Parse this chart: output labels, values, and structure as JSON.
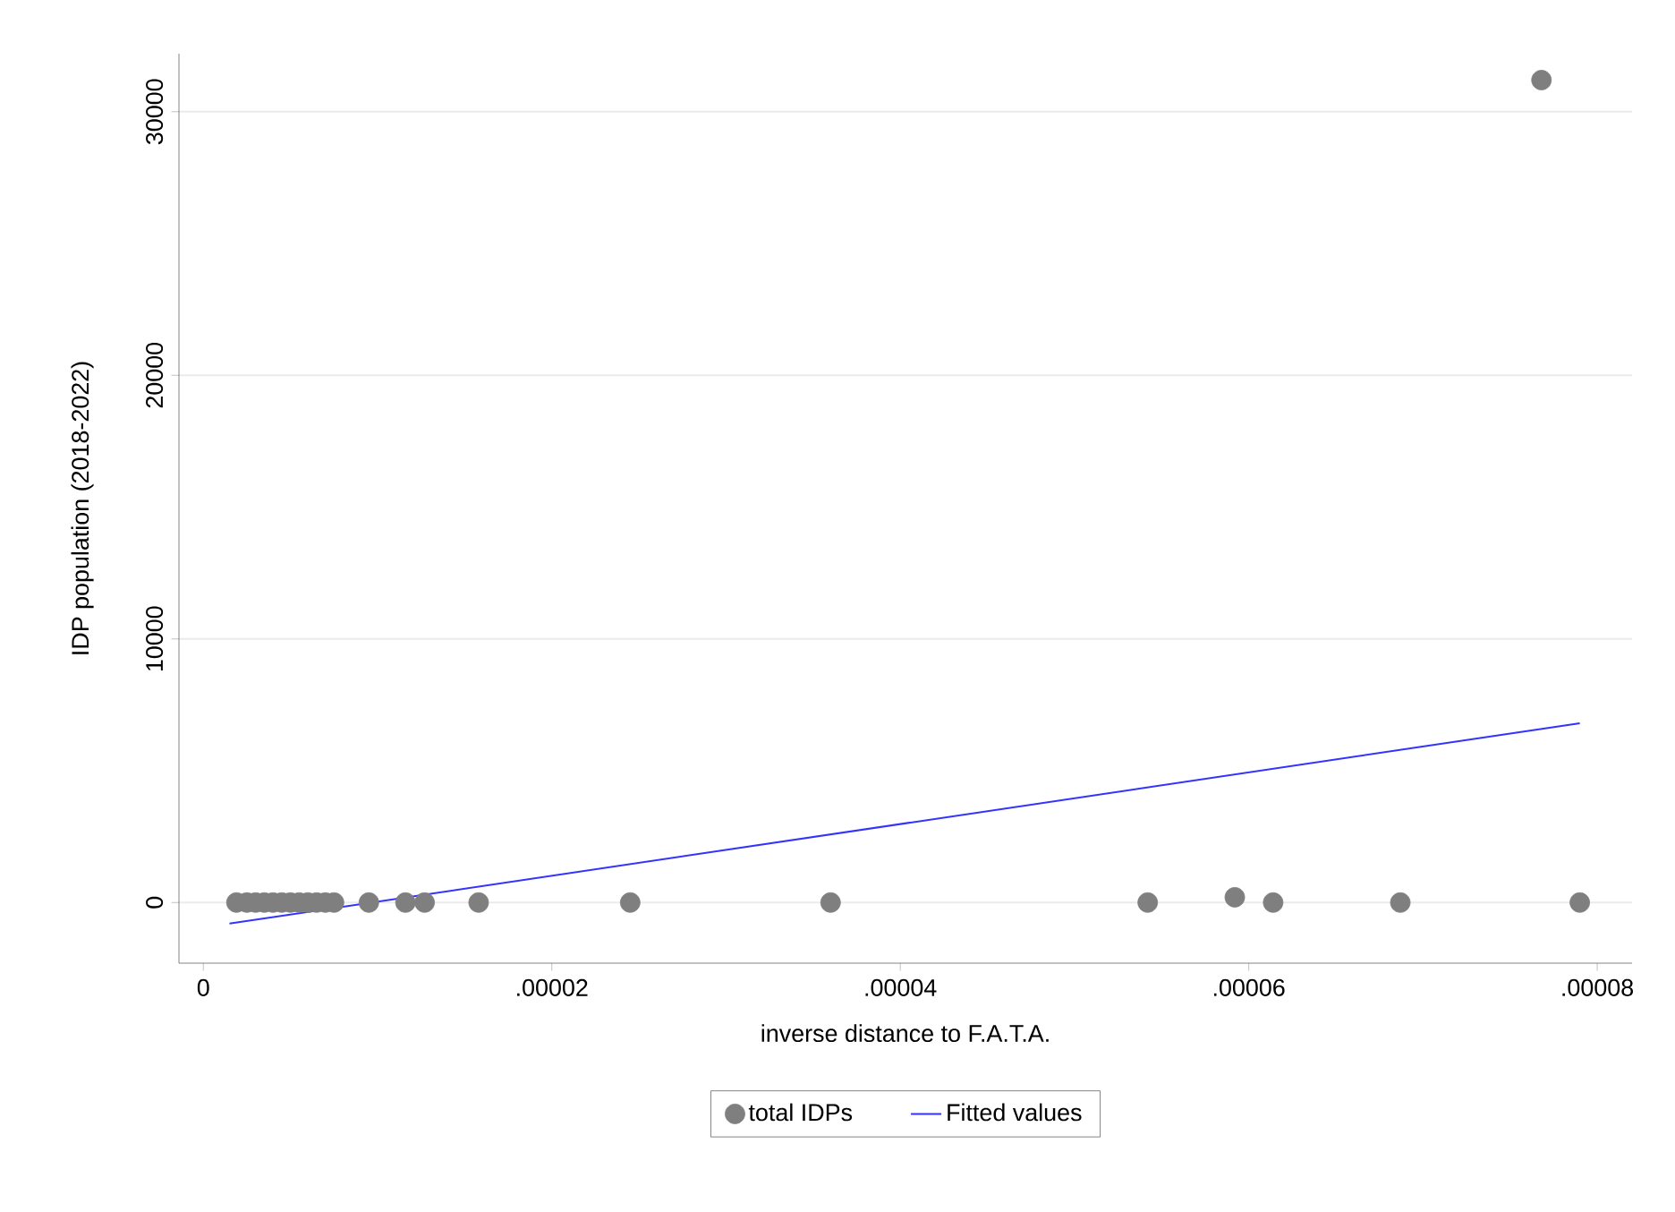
{
  "chart_data": {
    "type": "scatter",
    "xlabel": "inverse distance to F.A.T.A.",
    "ylabel": "IDP population (2018-2022)",
    "xlim": [
      -1.4e-06,
      8.2e-05
    ],
    "ylim": [
      -2300,
      32200
    ],
    "xticks": [
      {
        "value": 0,
        "label": "0"
      },
      {
        "value": 2e-05,
        "label": ".00002"
      },
      {
        "value": 4e-05,
        "label": ".00004"
      },
      {
        "value": 6e-05,
        "label": ".00006"
      },
      {
        "value": 8e-05,
        "label": ".00008"
      }
    ],
    "yticks": [
      0,
      10000,
      20000,
      30000
    ],
    "grid": "y",
    "legend": "bottom",
    "series": [
      {
        "name": "total IDPs",
        "marker": "circle",
        "color": "#7f7f7f",
        "x": [
          1.9e-06,
          2.5e-06,
          3e-06,
          3.5e-06,
          4e-06,
          4.5e-06,
          5e-06,
          5.5e-06,
          6e-06,
          6.5e-06,
          7e-06,
          7.5e-06,
          9.5e-06,
          1.16e-05,
          1.27e-05,
          1.58e-05,
          2.45e-05,
          3.6e-05,
          5.42e-05,
          5.92e-05,
          6.14e-05,
          6.87e-05,
          7.68e-05,
          7.9e-05
        ],
        "values": [
          0,
          0,
          0,
          0,
          0,
          0,
          0,
          0,
          0,
          0,
          0,
          0,
          0,
          0,
          0,
          0,
          0,
          0,
          0,
          200,
          0,
          0,
          31200,
          0
        ]
      },
      {
        "name": "Fitted values",
        "type": "line",
        "marker": "none",
        "color": "#3333ff",
        "x": [
          1.5e-06,
          7.9e-05
        ],
        "values": [
          -800,
          6800
        ]
      }
    ]
  }
}
